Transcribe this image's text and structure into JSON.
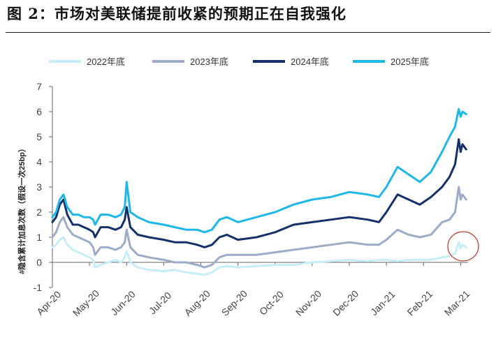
{
  "title": "图 2：市场对美联储提前收紧的预期正在自我强化",
  "chart_data": {
    "type": "line",
    "ylabel": "#隐含累计加息次数（假设一次25bp）",
    "xlabel": "",
    "ylim": [
      -1,
      7
    ],
    "yticks": [
      -1,
      0,
      1,
      2,
      3,
      4,
      5,
      6,
      7
    ],
    "xlim": [
      0,
      11.2
    ],
    "x_tick_labels": [
      "Apr-20",
      "May-20",
      "Jun-20",
      "Jul-20",
      "Aug-20",
      "Sep-20",
      "Oct-20",
      "Nov-20",
      "Dec-20",
      "Jan-21",
      "Feb-21",
      "Mar-21"
    ],
    "x_tick_positions": [
      0,
      1,
      2,
      3,
      4,
      5,
      6,
      7,
      8,
      9,
      10,
      11
    ],
    "legend_position": "top",
    "grid": false,
    "annotation": "red circle around the Mar-21 values of 2022年底 series",
    "colors": {
      "2022年底": "#c6eef8",
      "2023年底": "#9cabc8",
      "2024年底": "#14306a",
      "2025年底": "#1db8e8",
      "annotation": "#c0392b",
      "axis": "#666666"
    },
    "series": [
      {
        "name": "2022年底",
        "x": [
          0,
          0.1,
          0.2,
          0.3,
          0.4,
          0.55,
          0.7,
          0.85,
          1.0,
          1.1,
          1.15,
          1.3,
          1.5,
          1.7,
          1.85,
          1.95,
          2.0,
          2.1,
          2.3,
          2.6,
          3.0,
          3.3,
          3.6,
          3.9,
          4.1,
          4.3,
          4.5,
          4.7,
          5.0,
          5.5,
          6.0,
          6.5,
          7.0,
          7.5,
          8.0,
          8.5,
          8.8,
          9.0,
          9.3,
          9.6,
          9.9,
          10.2,
          10.5,
          10.7,
          10.85,
          10.95,
          11.0,
          11.05,
          11.15
        ],
        "values": [
          0.6,
          0.7,
          0.9,
          1.0,
          0.7,
          0.5,
          0.4,
          0.3,
          0.2,
          0.1,
          -0.2,
          -0.1,
          0.0,
          0.1,
          0.0,
          0.2,
          0.45,
          0.0,
          -0.2,
          -0.3,
          -0.35,
          -0.3,
          -0.4,
          -0.45,
          -0.5,
          -0.4,
          -0.2,
          -0.15,
          -0.2,
          -0.15,
          -0.1,
          -0.1,
          0.0,
          0.05,
          0.1,
          0.05,
          0.1,
          0.1,
          0.05,
          0.1,
          0.1,
          0.1,
          0.2,
          0.25,
          0.35,
          0.8,
          0.55,
          0.7,
          0.6
        ]
      },
      {
        "name": "2023年底",
        "x": [
          0,
          0.1,
          0.2,
          0.3,
          0.4,
          0.55,
          0.7,
          0.85,
          1.0,
          1.1,
          1.15,
          1.3,
          1.5,
          1.7,
          1.85,
          1.95,
          2.0,
          2.1,
          2.3,
          2.6,
          3.0,
          3.3,
          3.6,
          3.9,
          4.1,
          4.3,
          4.5,
          4.7,
          5.0,
          5.5,
          6.0,
          6.5,
          7.0,
          7.5,
          8.0,
          8.5,
          8.8,
          9.0,
          9.3,
          9.6,
          9.9,
          10.2,
          10.5,
          10.7,
          10.85,
          10.95,
          11.0,
          11.05,
          11.15
        ],
        "values": [
          1.0,
          1.2,
          1.6,
          1.8,
          1.4,
          1.1,
          1.0,
          0.9,
          0.8,
          0.6,
          0.3,
          0.6,
          0.6,
          0.5,
          0.6,
          0.8,
          1.3,
          0.6,
          0.3,
          0.2,
          0.1,
          0.0,
          0.0,
          -0.1,
          -0.2,
          -0.1,
          0.2,
          0.3,
          0.3,
          0.3,
          0.4,
          0.5,
          0.6,
          0.7,
          0.8,
          0.7,
          0.7,
          0.9,
          1.3,
          1.1,
          1.0,
          1.1,
          1.6,
          1.7,
          2.0,
          3.0,
          2.5,
          2.7,
          2.5
        ]
      },
      {
        "name": "2024年底",
        "x": [
          0,
          0.1,
          0.2,
          0.3,
          0.4,
          0.55,
          0.7,
          0.85,
          1.0,
          1.1,
          1.15,
          1.3,
          1.5,
          1.7,
          1.85,
          1.95,
          2.0,
          2.1,
          2.3,
          2.6,
          3.0,
          3.3,
          3.6,
          3.9,
          4.1,
          4.3,
          4.5,
          4.7,
          5.0,
          5.5,
          6.0,
          6.5,
          7.0,
          7.5,
          8.0,
          8.5,
          8.8,
          9.0,
          9.3,
          9.6,
          9.9,
          10.2,
          10.5,
          10.7,
          10.85,
          10.95,
          11.0,
          11.05,
          11.15
        ],
        "values": [
          1.6,
          1.8,
          2.3,
          2.5,
          1.9,
          1.5,
          1.5,
          1.4,
          1.3,
          1.2,
          1.0,
          1.4,
          1.4,
          1.3,
          1.4,
          1.7,
          2.2,
          1.4,
          1.1,
          1.0,
          0.9,
          0.8,
          0.8,
          0.7,
          0.6,
          0.7,
          1.0,
          1.1,
          0.9,
          1.0,
          1.2,
          1.5,
          1.6,
          1.7,
          1.8,
          1.7,
          1.6,
          2.0,
          2.7,
          2.5,
          2.3,
          2.6,
          3.0,
          3.4,
          3.9,
          4.9,
          4.4,
          4.7,
          4.5
        ]
      },
      {
        "name": "2025年底",
        "x": [
          0,
          0.1,
          0.2,
          0.3,
          0.4,
          0.55,
          0.7,
          0.85,
          1.0,
          1.1,
          1.15,
          1.3,
          1.5,
          1.7,
          1.85,
          1.95,
          2.0,
          2.1,
          2.3,
          2.6,
          3.0,
          3.3,
          3.6,
          3.9,
          4.1,
          4.3,
          4.5,
          4.7,
          5.0,
          5.5,
          6.0,
          6.5,
          7.0,
          7.5,
          8.0,
          8.5,
          8.8,
          9.0,
          9.3,
          9.6,
          9.9,
          10.2,
          10.5,
          10.7,
          10.85,
          10.95,
          11.0,
          11.05,
          11.15
        ],
        "values": [
          1.8,
          2.0,
          2.5,
          2.7,
          2.2,
          1.9,
          1.9,
          1.8,
          1.8,
          1.7,
          1.5,
          1.9,
          1.9,
          1.8,
          1.9,
          2.2,
          3.2,
          2.0,
          1.8,
          1.6,
          1.5,
          1.4,
          1.3,
          1.3,
          1.2,
          1.3,
          1.7,
          1.8,
          1.6,
          1.8,
          2.0,
          2.3,
          2.5,
          2.6,
          2.8,
          2.7,
          2.6,
          3.0,
          3.8,
          3.5,
          3.2,
          3.6,
          4.4,
          5.0,
          5.4,
          6.1,
          5.8,
          6.0,
          5.9
        ]
      }
    ]
  }
}
